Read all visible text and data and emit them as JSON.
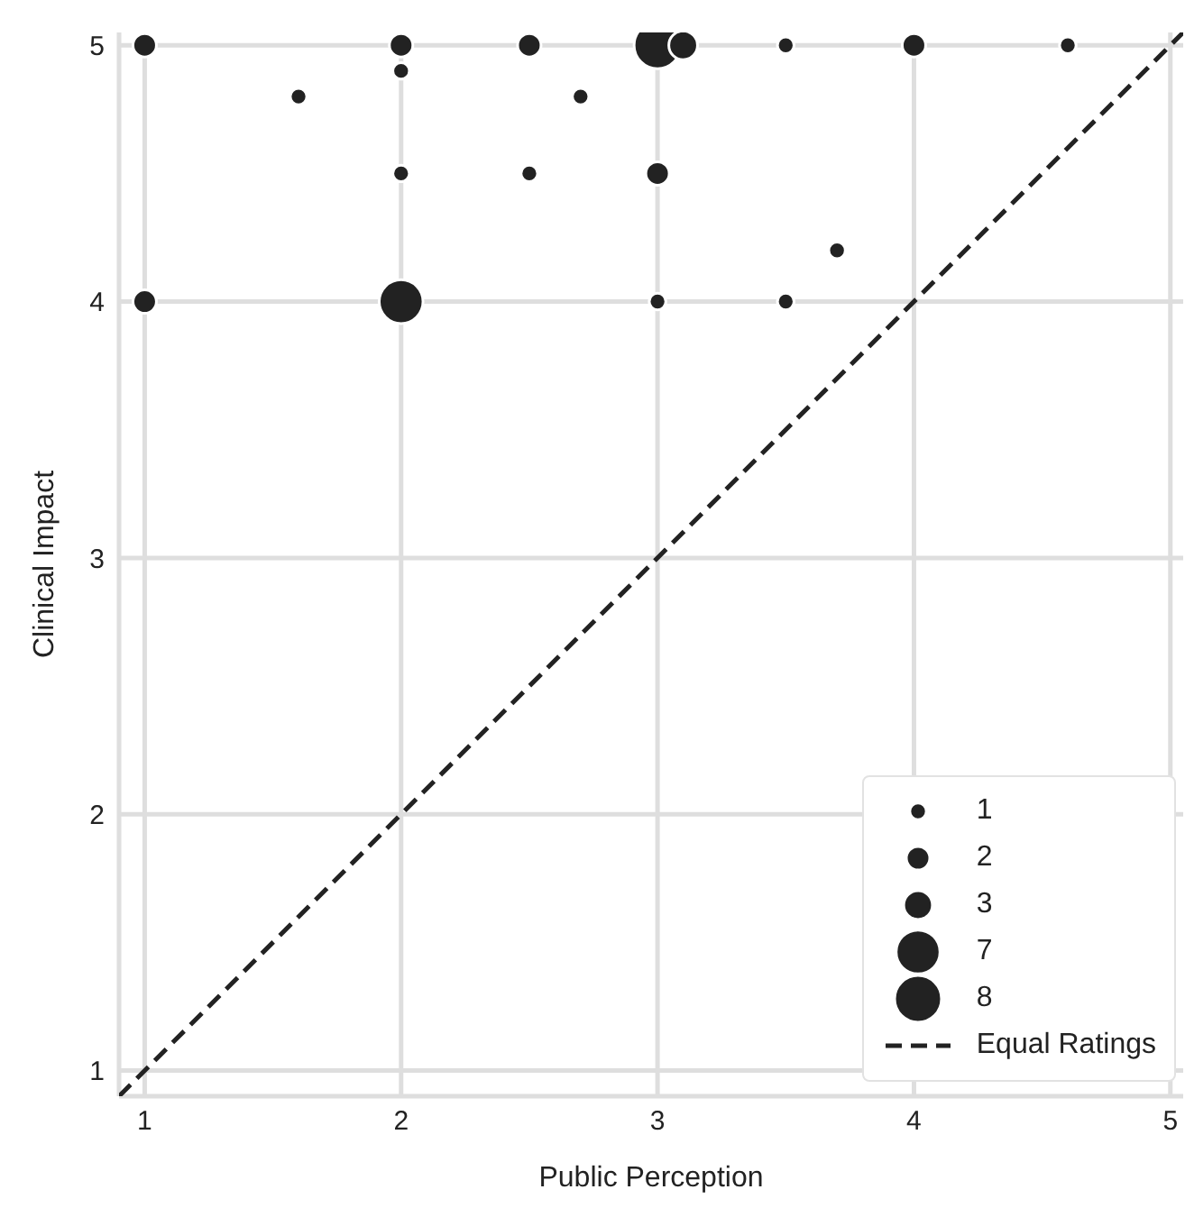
{
  "chart_data": {
    "type": "bubble",
    "xlabel": "Public Perception",
    "ylabel": "Clinical Impact",
    "xlim": [
      0.9,
      5.05
    ],
    "ylim": [
      0.9,
      5.05
    ],
    "xticks": [
      1,
      2,
      3,
      4,
      5
    ],
    "yticks": [
      1,
      2,
      3,
      4,
      5
    ],
    "grid": true,
    "legend": "bottom right",
    "size_legend": [
      1,
      2,
      3,
      7,
      8
    ],
    "series": [
      {
        "color": "#222222",
        "x": [
          1,
          2,
          2.5,
          3,
          3.1,
          3.5,
          4,
          4.6,
          1.6,
          2,
          2.7,
          2,
          2.5,
          3,
          3.7,
          1,
          2,
          3,
          3.5
        ],
        "values": [
          5,
          5,
          5,
          5,
          5,
          5,
          5,
          5,
          4.8,
          4.9,
          4.8,
          4.5,
          4.5,
          4.5,
          4.2,
          4,
          4,
          4,
          4
        ],
        "sizes": [
          2,
          2,
          2,
          8,
          3,
          1,
          2,
          1,
          1,
          1,
          1,
          1,
          1,
          2,
          1,
          2,
          7,
          1,
          1
        ]
      },
      {
        "type": "line",
        "name": "Equal Ratings",
        "color": "#222222",
        "line_style": "dashed",
        "x": [
          0.9,
          5.05
        ],
        "values": [
          0.9,
          5.05
        ]
      }
    ]
  }
}
